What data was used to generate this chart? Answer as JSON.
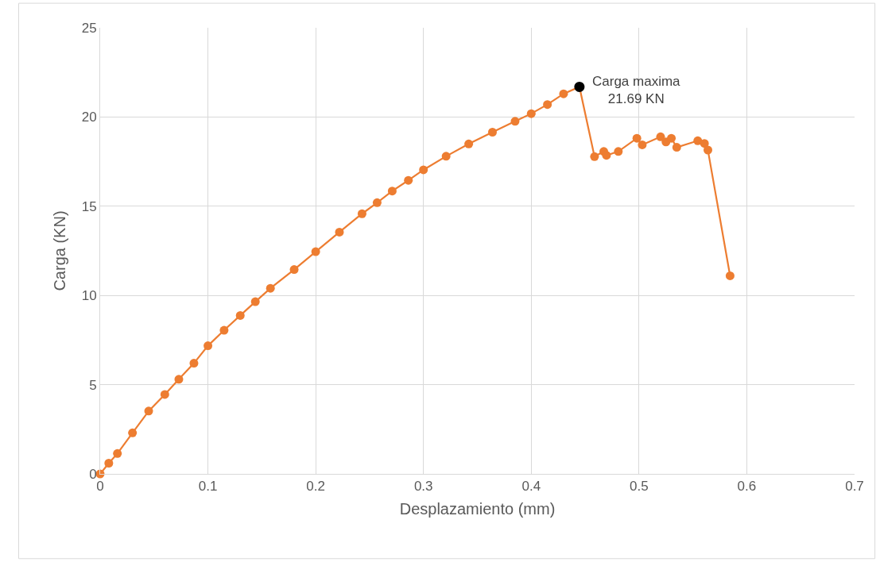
{
  "chart_data": {
    "type": "line",
    "xlabel": "Desplazamiento (mm)",
    "ylabel": "Carga (KN)",
    "xlim": [
      0,
      0.7
    ],
    "xticks": [
      0,
      0.1,
      0.2,
      0.3,
      0.4,
      0.5,
      0.6,
      0.7
    ],
    "ylim": [
      0,
      25
    ],
    "yticks": [
      0,
      5,
      10,
      15,
      20,
      25
    ],
    "grid": true,
    "marker": "circle",
    "line_style": "solid",
    "series": [
      {
        "color": "#ed7d31",
        "x": [
          0,
          0.008,
          0.016,
          0.03,
          0.045,
          0.06,
          0.073,
          0.087,
          0.1,
          0.115,
          0.13,
          0.144,
          0.158,
          0.18,
          0.2,
          0.222,
          0.243,
          0.257,
          0.271,
          0.286,
          0.3,
          0.321,
          0.342,
          0.364,
          0.385,
          0.4,
          0.415,
          0.43,
          0.4447,
          0.4587,
          0.4673,
          0.4698,
          0.4808,
          0.498,
          0.503,
          0.52,
          0.525,
          0.53,
          0.535,
          0.5545,
          0.5607,
          0.5639,
          0.5845
        ],
        "values": [
          0,
          0.6,
          1.14,
          2.3,
          3.52,
          4.45,
          5.3,
          6.2,
          7.18,
          8.05,
          8.88,
          9.65,
          10.4,
          11.45,
          12.45,
          13.55,
          14.58,
          15.2,
          15.85,
          16.45,
          17.04,
          17.8,
          18.49,
          19.15,
          19.76,
          20.19,
          20.7,
          21.3,
          21.69,
          17.78,
          18.07,
          17.85,
          18.07,
          18.81,
          18.44,
          18.89,
          18.6,
          18.81,
          18.3,
          18.67,
          18.52,
          18.15,
          11.1
        ]
      },
      {
        "type": "scatter",
        "color": "#000000",
        "x": [
          0.4447
        ],
        "values": [
          21.69
        ]
      }
    ],
    "annotations": [
      {
        "text": "Carga maxima\n21.69 KN",
        "x": 0.4447,
        "y": 21.69
      }
    ]
  }
}
